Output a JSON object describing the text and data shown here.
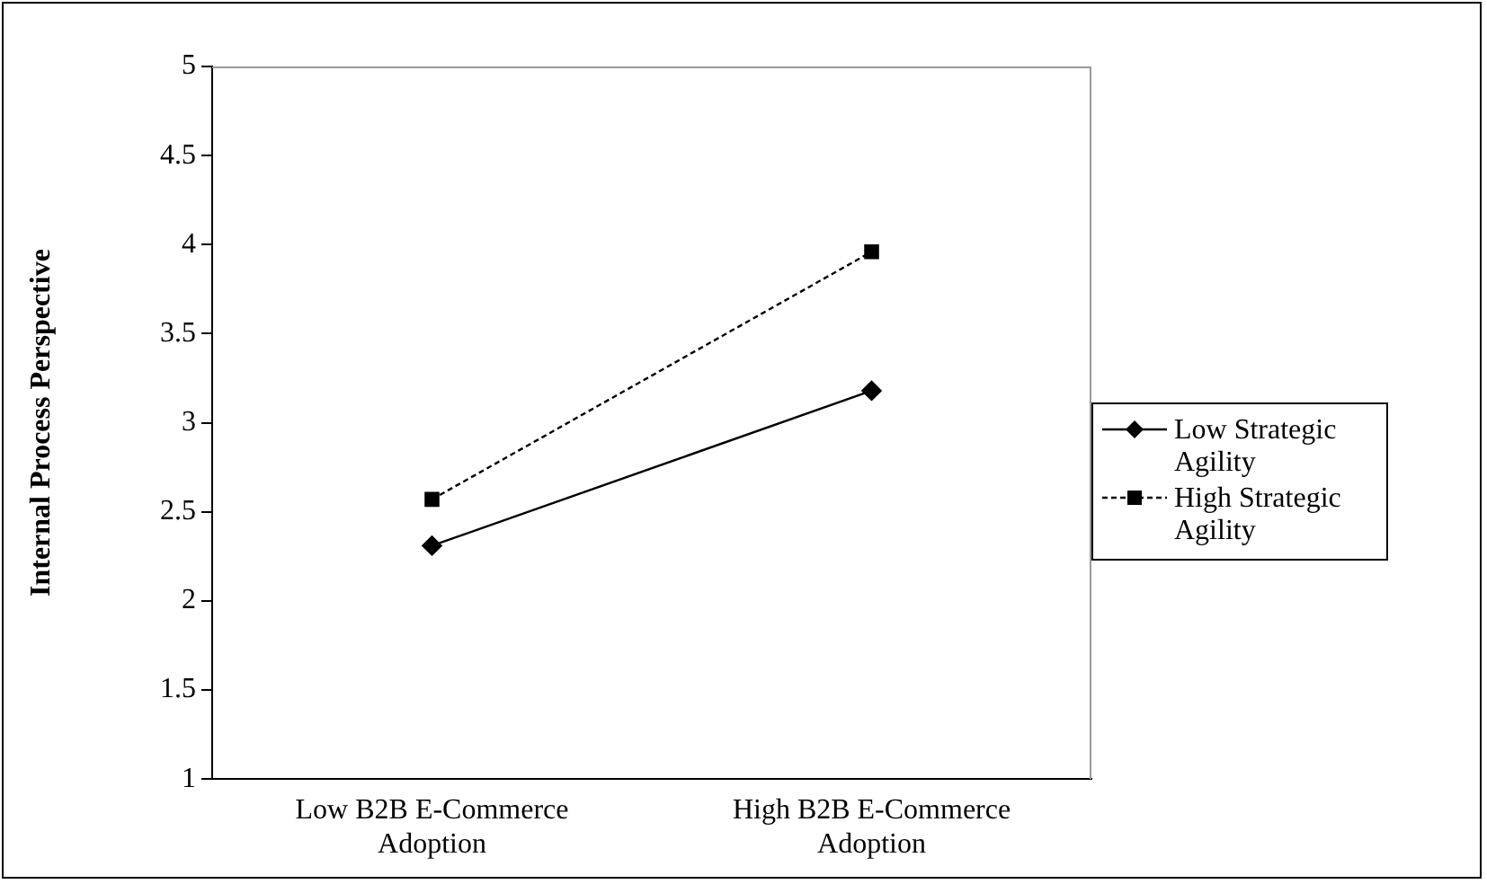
{
  "chart_data": {
    "type": "line",
    "ylabel": "Internal Process Perspective",
    "categories": [
      "Low B2B E-Commerce Adoption",
      "High B2B E-Commerce Adoption"
    ],
    "series": [
      {
        "name": "Low Strategic Agility",
        "color": "#000000",
        "values": [
          2.31,
          3.18
        ],
        "marker": "diamond",
        "line_style": "solid"
      },
      {
        "name": "High Strategic Agility",
        "color": "#000000",
        "values": [
          2.57,
          3.96
        ],
        "marker": "square",
        "line_style": "dashed"
      }
    ],
    "ylim": [
      1,
      5
    ],
    "yticks": [
      1,
      1.5,
      2,
      2.5,
      3,
      3.5,
      4,
      4.5,
      5
    ],
    "grid": false,
    "legend": "right"
  }
}
